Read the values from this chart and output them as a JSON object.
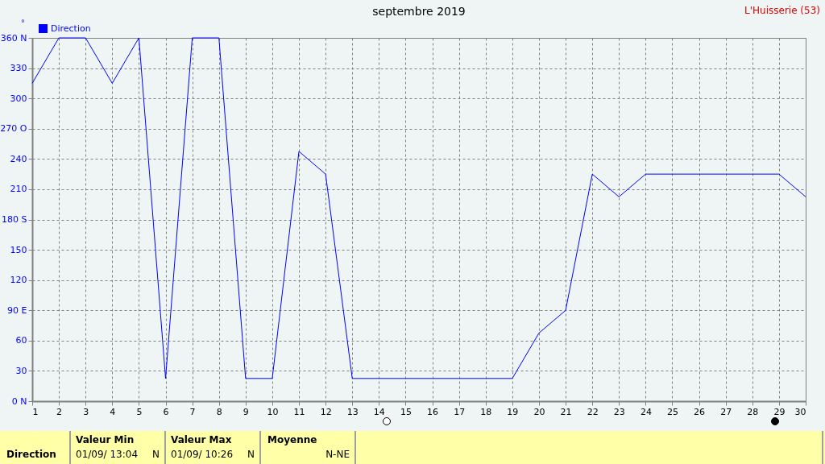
{
  "chart_data": {
    "type": "line",
    "title": "septembre 2019",
    "ylabel": "°",
    "x": [
      1,
      2,
      3,
      4,
      5,
      6,
      7,
      8,
      9,
      10,
      11,
      12,
      13,
      14,
      15,
      16,
      17,
      18,
      19,
      20,
      21,
      22,
      23,
      24,
      25,
      26,
      27,
      28,
      29,
      30
    ],
    "series": [
      {
        "name": "Direction",
        "color": "#0000ff",
        "values": [
          315,
          360,
          360,
          315,
          360,
          22.5,
          360,
          360,
          22.5,
          22.5,
          247.5,
          225,
          22.5,
          22.5,
          22.5,
          22.5,
          22.5,
          22.5,
          22.5,
          67.5,
          90,
          225,
          202.5,
          225,
          225,
          225,
          225,
          225,
          225,
          202.5
        ]
      }
    ],
    "xlim": [
      1,
      30
    ],
    "xticks": [
      1,
      2,
      3,
      4,
      5,
      6,
      7,
      8,
      9,
      10,
      11,
      12,
      13,
      14,
      15,
      16,
      17,
      18,
      19,
      20,
      21,
      22,
      23,
      24,
      25,
      26,
      27,
      28,
      29,
      30
    ],
    "ylim": [
      0,
      360
    ],
    "yticks": [
      {
        "value": 0,
        "label": "0  N"
      },
      30,
      60,
      {
        "value": 90,
        "label": "90  E"
      },
      120,
      150,
      {
        "value": 180,
        "label": "180 S"
      },
      210,
      240,
      {
        "value": 270,
        "label": "270 O"
      },
      300,
      330,
      {
        "value": 360,
        "label": "360 N"
      }
    ],
    "grid": true,
    "legend": "top left",
    "marker": "none",
    "line_style": "solid",
    "annotations": [
      "L'Huisserie (53)",
      "Direction",
      "Valeur Min",
      "01/09/ 13:04",
      "N",
      "Valeur Max",
      "01/09/ 10:26",
      "N",
      "Moyenne",
      "N-NE"
    ]
  }
}
